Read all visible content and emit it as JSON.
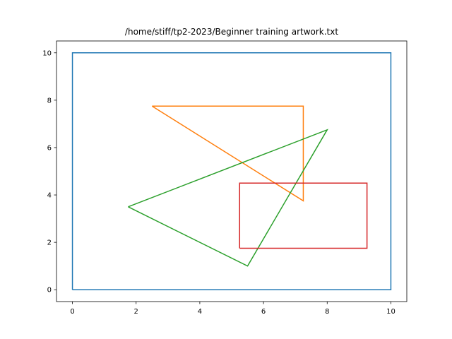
{
  "chart_data": {
    "type": "line",
    "title": "/home/stiff/tp2-2023/Beginner training artwork.txt",
    "xlabel": "",
    "ylabel": "",
    "xlim": [
      -0.5,
      10.5
    ],
    "ylim": [
      -0.5,
      10.5
    ],
    "xticks": [
      0,
      2,
      4,
      6,
      8,
      10
    ],
    "yticks": [
      0,
      2,
      4,
      6,
      8,
      10
    ],
    "grid": false,
    "series": [
      {
        "color": "#1f77b4",
        "x": [
          0,
          10,
          10,
          0,
          0
        ],
        "y": [
          0,
          0,
          10,
          10,
          0
        ]
      },
      {
        "color": "#ff7f0e",
        "x": [
          2.5,
          7.25,
          7.25,
          2.5
        ],
        "y": [
          7.75,
          7.75,
          3.75,
          7.75
        ]
      },
      {
        "color": "#2ca02c",
        "x": [
          1.75,
          8,
          5.5,
          1.75
        ],
        "y": [
          3.5,
          6.75,
          1.0,
          3.5
        ]
      },
      {
        "color": "#d62728",
        "x": [
          5.25,
          9.25,
          9.25,
          5.25,
          5.25
        ],
        "y": [
          1.75,
          1.75,
          4.5,
          4.5,
          1.75
        ]
      }
    ]
  }
}
